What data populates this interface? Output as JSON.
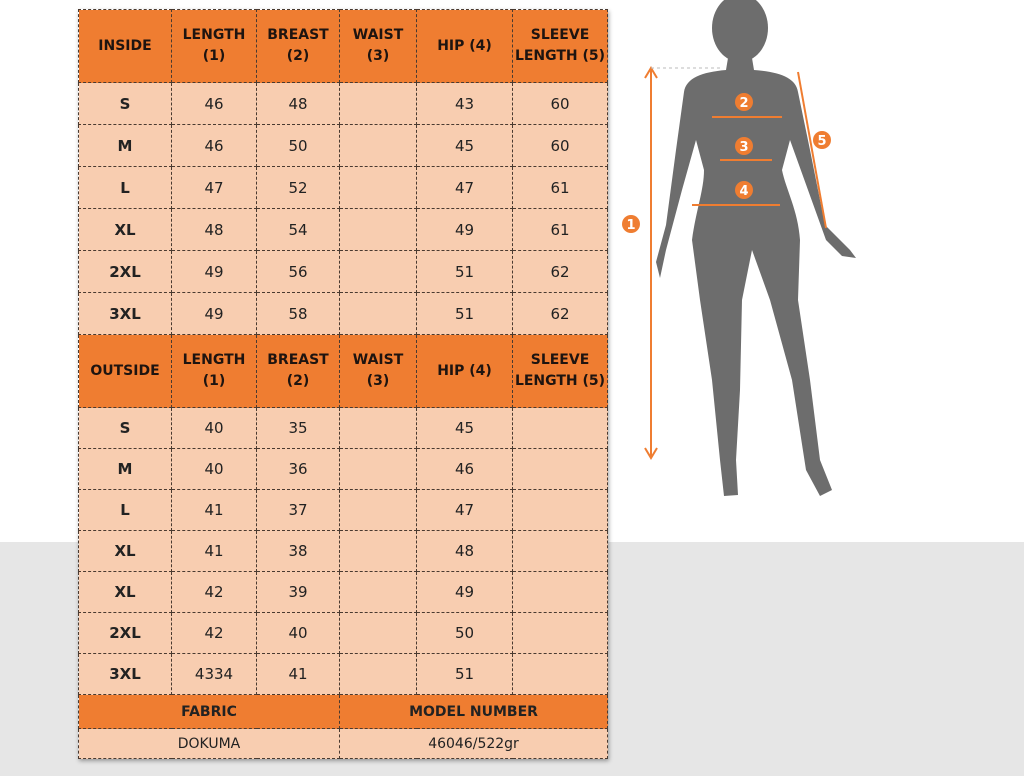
{
  "inside": {
    "headers": [
      "INSIDE",
      "LENGTH (1)",
      "BREAST (2)",
      "WAIST (3)",
      "HIP (4)",
      "SLEEVE LENGTH (5)"
    ],
    "rows": [
      [
        "S",
        "46",
        "48",
        "",
        "43",
        "60"
      ],
      [
        "M",
        "46",
        "50",
        "",
        "45",
        "60"
      ],
      [
        "L",
        "47",
        "52",
        "",
        "47",
        "61"
      ],
      [
        "XL",
        "48",
        "54",
        "",
        "49",
        "61"
      ],
      [
        "2XL",
        "49",
        "56",
        "",
        "51",
        "62"
      ],
      [
        "3XL",
        "49",
        "58",
        "",
        "51",
        "62"
      ]
    ]
  },
  "outside": {
    "headers": [
      "OUTSIDE",
      "LENGTH (1)",
      "BREAST (2)",
      "WAIST (3)",
      "HIP (4)",
      "SLEEVE LENGTH (5)"
    ],
    "rows": [
      [
        "S",
        "40",
        "35",
        "",
        "45",
        ""
      ],
      [
        "M",
        "40",
        "36",
        "",
        "46",
        ""
      ],
      [
        "L",
        "41",
        "37",
        "",
        "47",
        ""
      ],
      [
        "XL",
        "41",
        "38",
        "",
        "48",
        ""
      ],
      [
        "XL",
        "42",
        "39",
        "",
        "49",
        ""
      ],
      [
        "2XL",
        "42",
        "40",
        "",
        "50",
        ""
      ],
      [
        "3XL",
        "4334",
        "41",
        "",
        "51",
        ""
      ]
    ]
  },
  "footer": {
    "fabric_label": "FABRIC",
    "model_label": "MODEL NUMBER",
    "fabric_value": "DOKUMA",
    "model_value": "46046/522gr"
  },
  "figure": {
    "markers": [
      "1",
      "2",
      "3",
      "4",
      "5"
    ],
    "accent": "#ef7d31",
    "silhouette": "#6d6d6d"
  }
}
